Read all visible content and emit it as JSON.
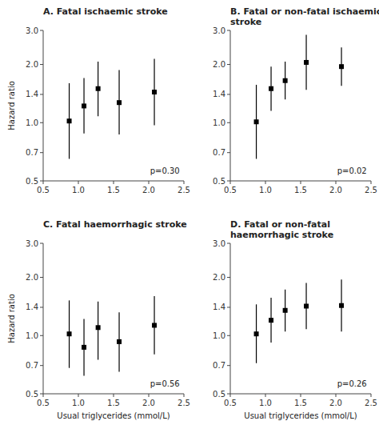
{
  "chart_data": [
    {
      "type": "errorbar",
      "title": "A.  Fatal ischaemic stroke",
      "annotation": "p=0.30",
      "x": [
        0.87,
        1.08,
        1.28,
        1.58,
        2.08
      ],
      "values": [
        1.02,
        1.22,
        1.5,
        1.27,
        1.44
      ],
      "lower": [
        0.65,
        0.88,
        1.08,
        0.87,
        0.97
      ],
      "upper": [
        1.6,
        1.7,
        2.07,
        1.87,
        2.14
      ],
      "ylabel": "Hazard ratio",
      "log": "y",
      "grid": false,
      "marker": "square",
      "color": "black",
      "xlim": [
        0.5,
        2.5
      ],
      "ylim": [
        0.5,
        3.0
      ],
      "xticks": [
        0.5,
        {
          "value": 1.0,
          "label": "1.0"
        },
        1.5,
        {
          "value": 2.0,
          "label": "2.0"
        },
        2.5
      ],
      "yticks": [
        0.5,
        0.7,
        {
          "value": 1.0,
          "label": "1.0"
        },
        1.4,
        {
          "value": 2.0,
          "label": "2.0"
        },
        {
          "value": 3.0,
          "label": "3.0"
        }
      ]
    },
    {
      "type": "errorbar",
      "title": "B.  Fatal or non-fatal ischaemic\nstroke",
      "annotation": "p=0.02",
      "x": [
        0.87,
        1.08,
        1.28,
        1.58,
        2.08
      ],
      "values": [
        1.01,
        1.5,
        1.65,
        2.05,
        1.95
      ],
      "lower": [
        0.65,
        1.15,
        1.32,
        1.48,
        1.55
      ],
      "upper": [
        1.57,
        1.95,
        2.07,
        2.85,
        2.45
      ],
      "log": "y",
      "grid": false,
      "marker": "square",
      "color": "black",
      "xlim": [
        0.5,
        2.5
      ],
      "ylim": [
        0.5,
        3.0
      ],
      "xticks": [
        0.5,
        {
          "value": 1.0,
          "label": "1.0"
        },
        1.5,
        {
          "value": 2.0,
          "label": "2.0"
        },
        2.5
      ],
      "yticks": [
        0.5,
        0.7,
        {
          "value": 1.0,
          "label": "1.0"
        },
        1.4,
        {
          "value": 2.0,
          "label": "2.0"
        },
        {
          "value": 3.0,
          "label": "3.0"
        }
      ]
    },
    {
      "type": "errorbar",
      "title": "C.  Fatal haemorrhagic stroke",
      "annotation": "p=0.56",
      "x": [
        0.87,
        1.08,
        1.28,
        1.58,
        2.08
      ],
      "values": [
        1.02,
        0.87,
        1.1,
        0.93,
        1.13
      ],
      "lower": [
        0.68,
        0.62,
        0.75,
        0.65,
        0.8
      ],
      "upper": [
        1.52,
        1.22,
        1.5,
        1.32,
        1.6
      ],
      "xlabel": "Usual triglycerides (mmol/L)",
      "ylabel": "Hazard ratio",
      "log": "y",
      "grid": false,
      "marker": "square",
      "color": "black",
      "xlim": [
        0.5,
        2.5
      ],
      "ylim": [
        0.5,
        3.0
      ],
      "xticks": [
        0.5,
        {
          "value": 1.0,
          "label": "1.0"
        },
        1.5,
        {
          "value": 2.0,
          "label": "2.0"
        },
        2.5
      ],
      "yticks": [
        0.5,
        0.7,
        {
          "value": 1.0,
          "label": "1.0"
        },
        1.4,
        {
          "value": 2.0,
          "label": "2.0"
        },
        {
          "value": 3.0,
          "label": "3.0"
        }
      ]
    },
    {
      "type": "errorbar",
      "title": "D.  Fatal or non-fatal\nhaemorrhagic stroke",
      "annotation": "p=0.26",
      "x": [
        0.87,
        1.08,
        1.28,
        1.58,
        2.08
      ],
      "values": [
        1.02,
        1.2,
        1.35,
        1.42,
        1.43
      ],
      "lower": [
        0.72,
        0.92,
        1.05,
        1.08,
        1.05
      ],
      "upper": [
        1.45,
        1.57,
        1.73,
        1.87,
        1.95
      ],
      "xlabel": "Usual triglycerides (mmol/L)",
      "log": "y",
      "grid": false,
      "marker": "square",
      "color": "black",
      "xlim": [
        0.5,
        2.5
      ],
      "ylim": [
        0.5,
        3.0
      ],
      "xticks": [
        0.5,
        {
          "value": 1.0,
          "label": "1.0"
        },
        1.5,
        {
          "value": 2.0,
          "label": "2.0"
        },
        2.5
      ],
      "yticks": [
        0.5,
        0.7,
        {
          "value": 1.0,
          "label": "1.0"
        },
        1.4,
        {
          "value": 2.0,
          "label": "2.0"
        },
        {
          "value": 3.0,
          "label": "3.0"
        }
      ]
    }
  ]
}
